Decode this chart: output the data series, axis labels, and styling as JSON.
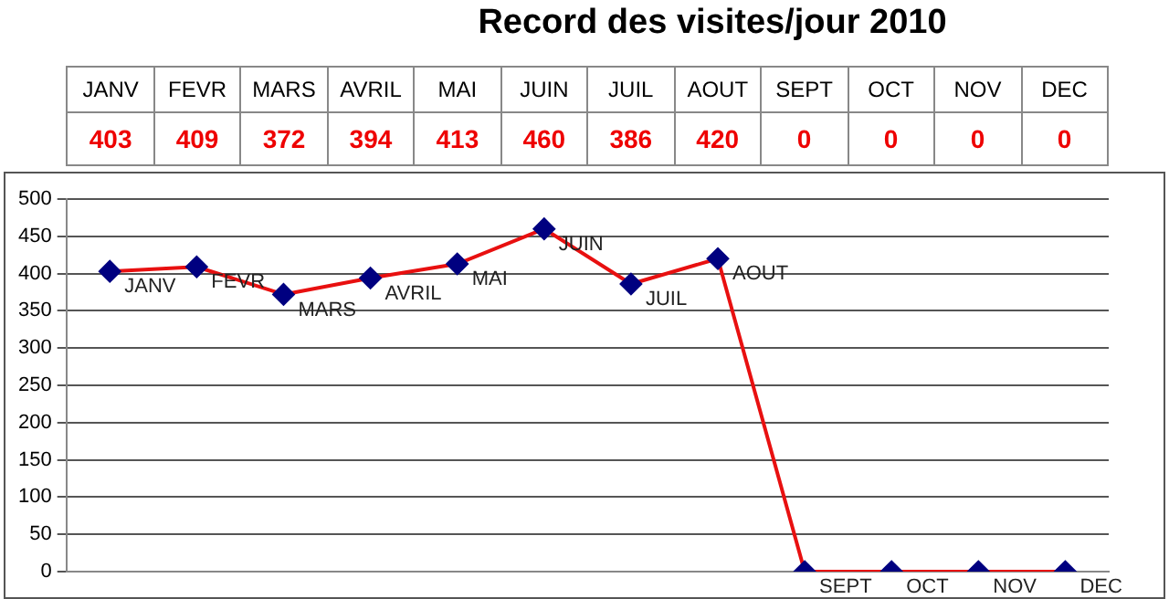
{
  "chart_data": {
    "type": "line",
    "title": "Record des visites/jour 2010",
    "categories": [
      "JANV",
      "FEVR",
      "MARS",
      "AVRIL",
      "MAI",
      "JUIN",
      "JUIL",
      "AOUT",
      "SEPT",
      "OCT",
      "NOV",
      "DEC"
    ],
    "series": [
      {
        "color": "#e81010",
        "values": [
          403,
          409,
          372,
          394,
          413,
          460,
          386,
          420,
          0,
          0,
          0,
          0
        ]
      }
    ],
    "ylim": [
      0,
      500
    ],
    "yticks": [
      0,
      50,
      100,
      150,
      200,
      250,
      300,
      350,
      400,
      450,
      500
    ],
    "grid": "y",
    "marker": "diamond",
    "line_style": "solid",
    "data_labels": true,
    "tick_labels": "y",
    "legend": false
  }
}
